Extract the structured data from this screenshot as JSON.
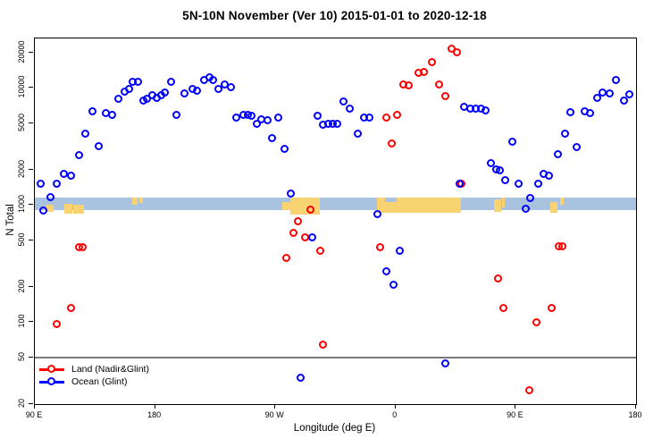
{
  "chart_data": {
    "type": "scatter",
    "title": "5N-10N November (Ver 10)   2015-01-01 to 2020-12-18",
    "xlabel": "Longitude (deg E)",
    "ylabel": "N Total",
    "x_axis": {
      "range": [
        90,
        540
      ],
      "ticks": [
        {
          "value": 90,
          "label": "90 E"
        },
        {
          "value": 180,
          "label": "180"
        },
        {
          "value": 270,
          "label": "90 W"
        },
        {
          "value": 360,
          "label": "0"
        },
        {
          "value": 450,
          "label": "90 E"
        },
        {
          "value": 540,
          "label": "180"
        }
      ]
    },
    "y_axis": {
      "scale": "log",
      "range": [
        20,
        26500
      ],
      "ticks": [
        20,
        50,
        100,
        200,
        500,
        1000,
        2000,
        5000,
        10000,
        20000
      ]
    },
    "reference_line": {
      "y": 50,
      "color": "#7a7a7a"
    },
    "ocean_band": {
      "y_range": [
        900,
        1170
      ],
      "color": "#A8C2DF"
    },
    "land_patch_color": "#F9D271",
    "land_patches": [
      {
        "x": [
          99,
          104
        ],
        "y": [
          870,
          1000
        ]
      },
      {
        "x": [
          112,
          118
        ],
        "y": [
          850,
          1020
        ]
      },
      {
        "x": [
          119,
          127
        ],
        "y": [
          840,
          1000
        ]
      },
      {
        "x": [
          163,
          167
        ],
        "y": [
          1000,
          1170
        ]
      },
      {
        "x": [
          168,
          171
        ],
        "y": [
          1040,
          1170
        ]
      },
      {
        "x": [
          275,
          281
        ],
        "y": [
          900,
          1060
        ]
      },
      {
        "x": [
          281,
          303
        ],
        "y": [
          830,
          1170
        ]
      },
      {
        "x": [
          346,
          409
        ],
        "y": [
          855,
          1170
        ]
      },
      {
        "x": [
          434,
          439
        ],
        "y": [
          880,
          1120
        ]
      },
      {
        "x": [
          440,
          442
        ],
        "y": [
          950,
          1170
        ]
      },
      {
        "x": [
          476,
          481
        ],
        "y": [
          860,
          1060
        ]
      },
      {
        "x": [
          483,
          486
        ],
        "y": [
          1000,
          1170
        ]
      }
    ],
    "water_notches": [
      {
        "x": [
          352,
          361
        ],
        "y": [
          1060,
          1170
        ]
      }
    ],
    "series": [
      {
        "name": "Land (Nadir&Glint)",
        "color": "#FF0000",
        "points": [
          [
            106.7,
            96
          ],
          [
            117.4,
            132
          ],
          [
            123.2,
            430
          ],
          [
            126.5,
            435
          ],
          [
            278.6,
            349
          ],
          [
            284.1,
            578
          ],
          [
            287.5,
            715
          ],
          [
            292.6,
            527
          ],
          [
            296.4,
            904
          ],
          [
            303.8,
            400
          ],
          [
            306.0,
            64
          ],
          [
            348.8,
            431
          ],
          [
            353.2,
            5520
          ],
          [
            357.7,
            3300
          ],
          [
            361.7,
            5820
          ],
          [
            366.2,
            10550
          ],
          [
            370.2,
            10330
          ],
          [
            377.3,
            13260
          ],
          [
            381.6,
            13490
          ],
          [
            387.8,
            16560
          ],
          [
            392.7,
            10640
          ],
          [
            397.4,
            8370
          ],
          [
            402.3,
            21500
          ],
          [
            406.3,
            19900
          ],
          [
            409.7,
            1520
          ],
          [
            436.8,
            233
          ],
          [
            440.8,
            131
          ],
          [
            460.3,
            26
          ],
          [
            465.8,
            98
          ],
          [
            477.0,
            132
          ],
          [
            482.5,
            437
          ],
          [
            485.4,
            443
          ]
        ]
      },
      {
        "name": "Ocean (Glint)",
        "color": "#0000FF",
        "points": [
          [
            94.5,
            1520
          ],
          [
            96.7,
            894
          ],
          [
            102.2,
            1151
          ],
          [
            107.0,
            1520
          ],
          [
            112.3,
            1828
          ],
          [
            117.2,
            1758
          ],
          [
            123.6,
            2650
          ],
          [
            128.3,
            4000
          ],
          [
            133.7,
            6210
          ],
          [
            138.1,
            3140
          ],
          [
            143.5,
            6030
          ],
          [
            148.0,
            5850
          ],
          [
            152.9,
            8040
          ],
          [
            157.5,
            9200
          ],
          [
            160.9,
            9640
          ],
          [
            163.6,
            11170
          ],
          [
            167.6,
            11170
          ],
          [
            171.4,
            7710
          ],
          [
            174.2,
            7940
          ],
          [
            178.0,
            8570
          ],
          [
            181.8,
            8180
          ],
          [
            184.8,
            8550
          ],
          [
            187.4,
            9100
          ],
          [
            192.1,
            11170
          ],
          [
            196.5,
            5820
          ],
          [
            202.3,
            8930
          ],
          [
            208.3,
            9640
          ],
          [
            211.7,
            9300
          ],
          [
            216.8,
            11620
          ],
          [
            221.3,
            12130
          ],
          [
            223.9,
            11620
          ],
          [
            227.9,
            9750
          ],
          [
            232.2,
            10640
          ],
          [
            237.3,
            10050
          ],
          [
            241.3,
            5580
          ],
          [
            246.3,
            5820
          ],
          [
            249.6,
            5820
          ],
          [
            252.5,
            5760
          ],
          [
            256.7,
            4870
          ],
          [
            260.0,
            5360
          ],
          [
            264.5,
            5210
          ],
          [
            267.8,
            3700
          ],
          [
            272.3,
            5520
          ],
          [
            277.4,
            2980
          ],
          [
            281.9,
            1234
          ],
          [
            289.1,
            33
          ],
          [
            298.0,
            527
          ],
          [
            302.0,
            5760
          ],
          [
            306.0,
            4820
          ],
          [
            310.2,
            4870
          ],
          [
            313.5,
            4870
          ],
          [
            316.7,
            4910
          ],
          [
            321.4,
            7570
          ],
          [
            325.8,
            6580
          ],
          [
            332.0,
            4040
          ],
          [
            336.5,
            5580
          ],
          [
            340.5,
            5520
          ],
          [
            346.6,
            830
          ],
          [
            353.2,
            270
          ],
          [
            358.8,
            206
          ],
          [
            363.3,
            400
          ],
          [
            397.8,
            44
          ],
          [
            408.5,
            1520
          ],
          [
            411.7,
            6780
          ],
          [
            416.2,
            6580
          ],
          [
            420.6,
            6580
          ],
          [
            424.2,
            6580
          ],
          [
            428.0,
            6380
          ],
          [
            432.0,
            2245
          ],
          [
            435.8,
            1995
          ],
          [
            438.7,
            1962
          ],
          [
            442.5,
            1626
          ],
          [
            448.0,
            3440
          ],
          [
            452.5,
            1518
          ],
          [
            458.0,
            920
          ],
          [
            461.3,
            1140
          ],
          [
            467.0,
            1518
          ],
          [
            471.0,
            1828
          ],
          [
            475.4,
            1754
          ],
          [
            482.1,
            2680
          ],
          [
            487.0,
            4040
          ],
          [
            491.5,
            6165
          ],
          [
            496.0,
            3100
          ],
          [
            502.2,
            6280
          ],
          [
            506.2,
            6030
          ],
          [
            511.6,
            8180
          ],
          [
            515.6,
            9100
          ],
          [
            520.9,
            8930
          ],
          [
            525.6,
            11510
          ],
          [
            531.2,
            7710
          ],
          [
            535.6,
            8690
          ]
        ]
      }
    ],
    "legend": {
      "position": "bottom-left"
    }
  }
}
